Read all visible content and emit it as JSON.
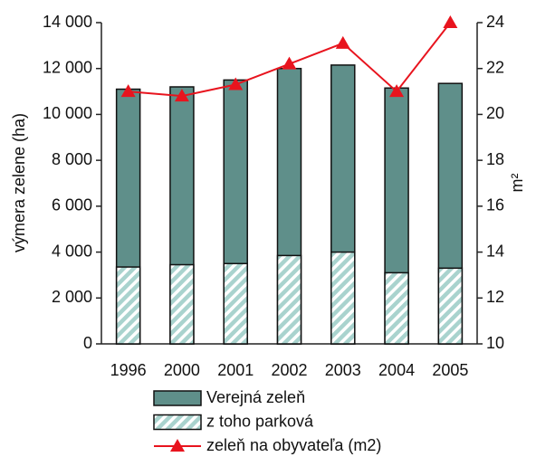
{
  "chart_data": {
    "type": "bar",
    "categories": [
      "1996",
      "2000",
      "2001",
      "2002",
      "2003",
      "2004",
      "2005"
    ],
    "series": [
      {
        "name": "Verejná zeleň",
        "type": "bar",
        "color": "#5f8f8a",
        "values": [
          11100,
          11200,
          11500,
          12000,
          12150,
          11150,
          11350
        ]
      },
      {
        "name": "z toho parková",
        "type": "bar",
        "pattern": "hatch",
        "color": "#a9d3ce",
        "values": [
          3350,
          3450,
          3500,
          3850,
          4000,
          3100,
          3300
        ]
      },
      {
        "name": "zeleň na obyvateľa (m2)",
        "type": "line",
        "axis": "y2",
        "color": "#e8141e",
        "values": [
          21.0,
          20.8,
          21.3,
          22.2,
          23.1,
          21.0,
          24.0
        ]
      }
    ],
    "ylabel": "výmera zelene (ha)",
    "y2label": "m²",
    "ylim": [
      0,
      14000
    ],
    "yticks": [
      0,
      {
        "value": 2000,
        "label": "2 000"
      },
      {
        "value": 4000,
        "label": "4 000"
      },
      {
        "value": 6000,
        "label": "6 000"
      },
      {
        "value": 8000,
        "label": "8 000"
      },
      {
        "value": 10000,
        "label": "10 000"
      },
      {
        "value": 12000,
        "label": "12 000"
      },
      {
        "value": 14000,
        "label": "14 000"
      }
    ],
    "y2lim": [
      10,
      24
    ],
    "y2ticks": [
      10,
      12,
      14,
      16,
      18,
      20,
      22,
      24
    ],
    "legend": "bottom"
  }
}
